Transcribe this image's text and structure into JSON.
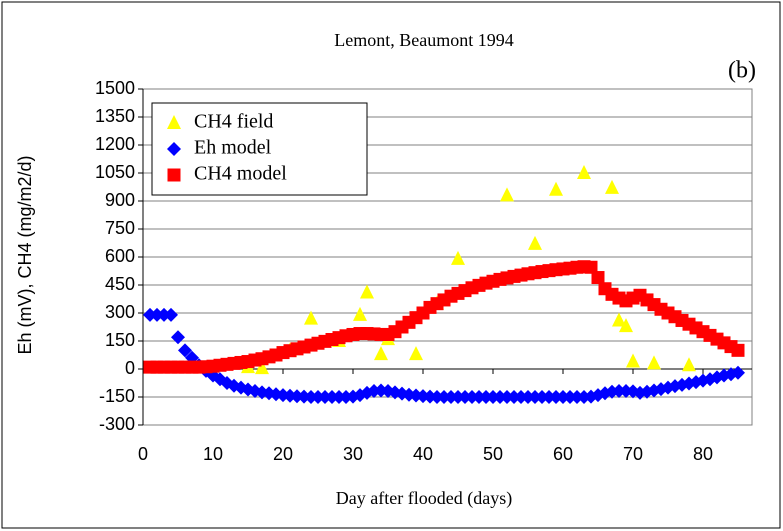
{
  "chart_data": {
    "type": "scatter",
    "title": "Lemont, Beaumont 1994",
    "annotation": "(b)",
    "xlabel": "Day after flooded (days)",
    "ylabel": "Eh (mV), CH4 (mg/m2/d)",
    "xlim": [
      0,
      87
    ],
    "ylim": [
      -300,
      1500
    ],
    "xticks": [
      0,
      10,
      20,
      30,
      40,
      50,
      60,
      70,
      80
    ],
    "yticks": [
      -300,
      -150,
      0,
      150,
      300,
      450,
      600,
      750,
      900,
      1050,
      1200,
      1350,
      1500
    ],
    "grid": true,
    "legend": "upper left",
    "series": [
      {
        "name": "CH4 field",
        "color": "#ffff00",
        "marker": "triangle",
        "x": [
          15,
          17,
          21,
          24,
          28,
          31,
          32,
          34,
          35,
          39,
          42,
          45,
          52,
          56,
          59,
          63,
          67,
          68,
          69,
          70,
          73,
          78
        ],
        "values": [
          10,
          5,
          100,
          270,
          150,
          290,
          410,
          80,
          160,
          80,
          350,
          590,
          930,
          670,
          960,
          1050,
          970,
          260,
          230,
          40,
          30,
          20
        ]
      },
      {
        "name": "Eh model",
        "color": "#0000ff",
        "marker": "diamond",
        "x": [
          1,
          2,
          3,
          4,
          5,
          6,
          7,
          8,
          9,
          10,
          11,
          12,
          13,
          14,
          15,
          16,
          17,
          18,
          19,
          20,
          21,
          22,
          23,
          24,
          25,
          26,
          27,
          28,
          29,
          30,
          31,
          32,
          33,
          34,
          35,
          36,
          37,
          38,
          39,
          40,
          41,
          42,
          43,
          44,
          45,
          46,
          47,
          48,
          49,
          50,
          51,
          52,
          53,
          54,
          55,
          56,
          57,
          58,
          59,
          60,
          61,
          62,
          63,
          64,
          65,
          66,
          67,
          68,
          69,
          70,
          71,
          72,
          73,
          74,
          75,
          76,
          77,
          78,
          79,
          80,
          81,
          82,
          83,
          84,
          85
        ],
        "values": [
          290,
          290,
          290,
          290,
          170,
          100,
          60,
          20,
          -10,
          -35,
          -55,
          -75,
          -90,
          -100,
          -110,
          -118,
          -125,
          -130,
          -135,
          -140,
          -143,
          -146,
          -148,
          -150,
          -150,
          -150,
          -150,
          -150,
          -150,
          -148,
          -140,
          -128,
          -118,
          -115,
          -118,
          -125,
          -132,
          -138,
          -142,
          -145,
          -148,
          -150,
          -150,
          -150,
          -150,
          -150,
          -150,
          -150,
          -150,
          -150,
          -150,
          -150,
          -150,
          -150,
          -150,
          -150,
          -150,
          -150,
          -150,
          -150,
          -150,
          -150,
          -150,
          -148,
          -140,
          -130,
          -122,
          -118,
          -118,
          -120,
          -128,
          -122,
          -115,
          -108,
          -100,
          -92,
          -85,
          -78,
          -70,
          -62,
          -55,
          -45,
          -35,
          -28,
          -20
        ]
      },
      {
        "name": "CH4 model",
        "color": "#ff0000",
        "marker": "square",
        "x": [
          1,
          2,
          3,
          4,
          5,
          6,
          7,
          8,
          9,
          10,
          11,
          12,
          13,
          14,
          15,
          16,
          17,
          18,
          19,
          20,
          21,
          22,
          23,
          24,
          25,
          26,
          27,
          28,
          29,
          30,
          31,
          32,
          33,
          34,
          35,
          36,
          37,
          38,
          39,
          40,
          41,
          42,
          43,
          44,
          45,
          46,
          47,
          48,
          49,
          50,
          51,
          52,
          53,
          54,
          55,
          56,
          57,
          58,
          59,
          60,
          61,
          62,
          63,
          64,
          65,
          66,
          67,
          68,
          69,
          70,
          71,
          72,
          73,
          74,
          75,
          76,
          77,
          78,
          79,
          80,
          81,
          82,
          83,
          84,
          85
        ],
        "values": [
          10,
          10,
          10,
          10,
          10,
          10,
          10,
          10,
          12,
          15,
          20,
          25,
          30,
          35,
          40,
          48,
          55,
          65,
          75,
          88,
          98,
          108,
          118,
          128,
          138,
          148,
          158,
          168,
          178,
          185,
          190,
          190,
          188,
          185,
          185,
          200,
          225,
          250,
          275,
          300,
          330,
          350,
          370,
          390,
          405,
          420,
          435,
          448,
          460,
          470,
          480,
          488,
          496,
          503,
          510,
          516,
          522,
          527,
          532,
          536,
          540,
          545,
          548,
          545,
          490,
          430,
          400,
          380,
          365,
          380,
          395,
          370,
          345,
          320,
          300,
          280,
          260,
          240,
          220,
          200,
          180,
          160,
          140,
          120,
          100
        ]
      }
    ]
  }
}
